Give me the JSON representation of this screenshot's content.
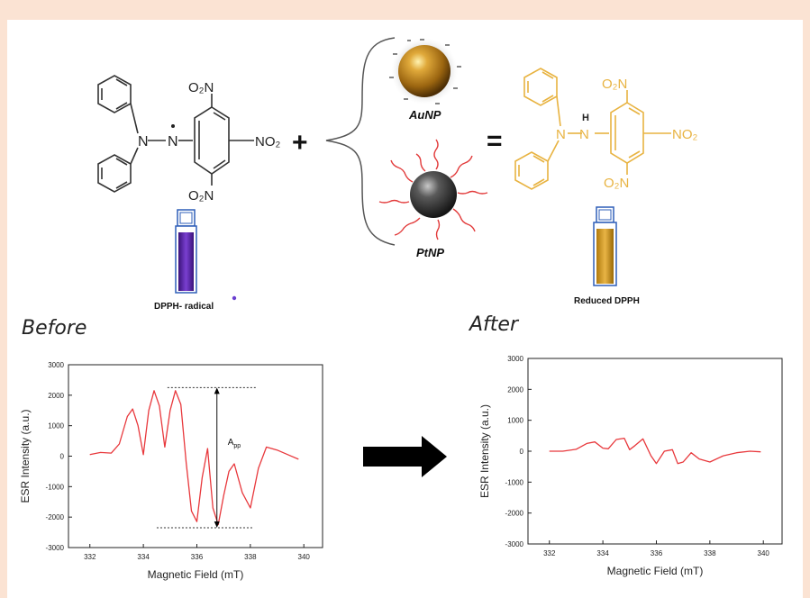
{
  "reactant": {
    "groups": {
      "no2_top": "O₂N",
      "no2_right": "NO₂",
      "no2_bottom": "O₂N",
      "n1": "N",
      "n2": "N"
    },
    "plus": "+",
    "vial_label": "DPPH- radical"
  },
  "catalysts": {
    "au_label": "AuNP",
    "pt_label": "PtNP"
  },
  "equals": "=",
  "product": {
    "groups": {
      "no2_top": "O₂N",
      "no2_right": "NO₂",
      "no2_bottom": "O₂N",
      "n1": "N",
      "n2": "N",
      "h": "H"
    },
    "vial_label": "Reduced DPPH"
  },
  "sections": {
    "before": "Before",
    "after": "After"
  },
  "chart_data": [
    {
      "type": "line",
      "name": "before",
      "xlabel": "Magnetic Field (mT)",
      "ylabel": "ESR Intensity (a.u.)",
      "xlim": [
        331.2,
        340.7
      ],
      "ylim": [
        -3000,
        3000
      ],
      "xticks": [
        332,
        334,
        336,
        338,
        340
      ],
      "yticks": [
        -3000,
        -2000,
        -1000,
        0,
        1000,
        2000,
        3000
      ],
      "annotation": {
        "label": "A",
        "subscript": "pp",
        "top": 2250,
        "bottom": -2350
      },
      "x": [
        332.0,
        332.4,
        332.8,
        333.1,
        333.4,
        333.6,
        333.8,
        334.0,
        334.2,
        334.4,
        334.6,
        334.8,
        335.0,
        335.2,
        335.4,
        335.6,
        335.8,
        336.0,
        336.2,
        336.4,
        336.6,
        336.8,
        337.0,
        337.2,
        337.4,
        337.7,
        338.0,
        338.3,
        338.6,
        339.0,
        339.4,
        339.8
      ],
      "y": [
        50,
        120,
        100,
        400,
        1300,
        1550,
        1000,
        50,
        1500,
        2150,
        1650,
        300,
        1500,
        2150,
        1700,
        -200,
        -1800,
        -2150,
        -700,
        250,
        -1700,
        -2250,
        -1300,
        -500,
        -250,
        -1200,
        -1700,
        -400,
        300,
        200,
        50,
        -100
      ]
    },
    {
      "type": "line",
      "name": "after",
      "xlabel": "Magnetic Field (mT)",
      "ylabel": "ESR Intensity (a.u.)",
      "xlim": [
        331.2,
        340.7
      ],
      "ylim": [
        -3000,
        3000
      ],
      "xticks": [
        332,
        334,
        336,
        338,
        340
      ],
      "yticks": [
        -3000,
        -2000,
        -1000,
        0,
        1000,
        2000,
        3000
      ],
      "x": [
        332.0,
        332.5,
        333.0,
        333.4,
        333.7,
        334.0,
        334.2,
        334.5,
        334.8,
        335.0,
        335.2,
        335.5,
        335.8,
        336.0,
        336.3,
        336.6,
        336.8,
        337.0,
        337.3,
        337.6,
        338.0,
        338.5,
        339.0,
        339.5,
        339.9
      ],
      "y": [
        0,
        0,
        60,
        250,
        300,
        100,
        80,
        380,
        420,
        50,
        180,
        400,
        -150,
        -400,
        0,
        50,
        -400,
        -350,
        -50,
        -250,
        -350,
        -150,
        -50,
        0,
        -20
      ]
    }
  ]
}
